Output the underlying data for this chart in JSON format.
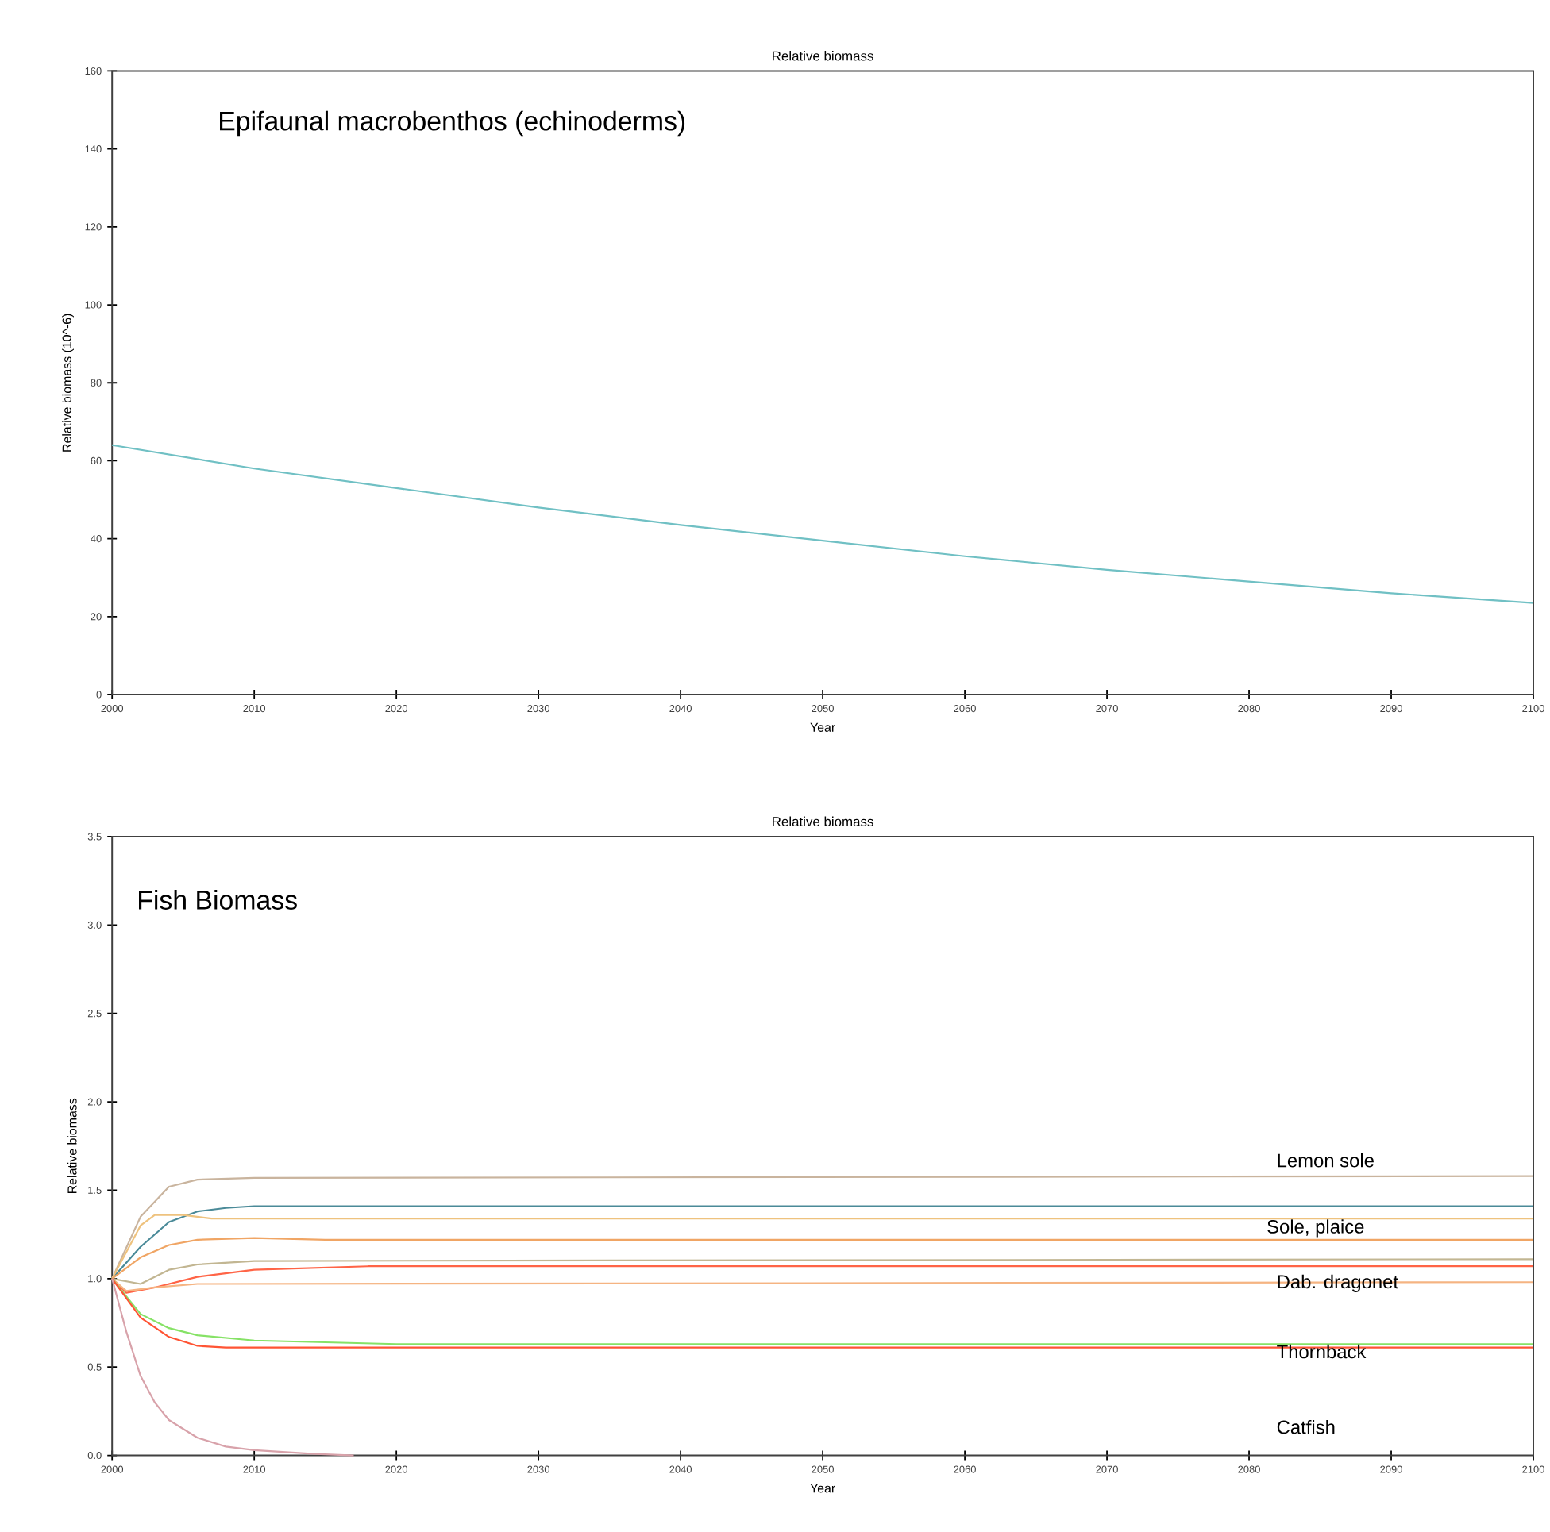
{
  "chart_data": [
    {
      "type": "line",
      "title": "Relative biomass",
      "xlabel": "Year",
      "ylabel": "Relative biomass (10^-6)",
      "annotations": [
        "Epifaunal macrobenthos (echinoderms)"
      ],
      "xlim": [
        2000,
        2100
      ],
      "ylim": [
        0,
        160
      ],
      "xticks": [
        2000,
        2010,
        2020,
        2030,
        2040,
        2050,
        2060,
        2070,
        2080,
        2090,
        2100
      ],
      "yticks": [
        0,
        20,
        40,
        60,
        80,
        100,
        120,
        140,
        160
      ],
      "x": [
        2000,
        2010,
        2020,
        2030,
        2040,
        2050,
        2060,
        2070,
        2080,
        2090,
        2100
      ],
      "series": [
        {
          "color": "#70c0c4",
          "values": [
            64,
            58,
            53,
            48,
            43.5,
            39.5,
            35.5,
            32,
            29,
            26,
            23.5
          ]
        }
      ]
    },
    {
      "type": "line",
      "title": "Relative biomass",
      "xlabel": "Year",
      "ylabel": "Relative biomass",
      "annotations": [
        "Fish Biomass",
        "Lemon sole",
        "Sole, plaice",
        "Dab. dragonet",
        "Thornback",
        "Catfish"
      ],
      "xlim": [
        2000,
        2100
      ],
      "ylim": [
        0,
        3.5
      ],
      "xticks": [
        2000,
        2010,
        2020,
        2030,
        2040,
        2050,
        2060,
        2070,
        2080,
        2090,
        2100
      ],
      "yticks": [
        {
          "value": 0,
          "label": "0.0"
        },
        0.5,
        {
          "value": 1,
          "label": "1.0"
        },
        1.5,
        {
          "value": 2,
          "label": "2.0"
        },
        2.5,
        {
          "value": 3,
          "label": "3.0"
        },
        3.5
      ],
      "series": [
        {
          "color": "#c9b49e",
          "x": [
            2000,
            2002,
            2004,
            2006,
            2010,
            2100
          ],
          "values": [
            1,
            1.35,
            1.52,
            1.56,
            1.57,
            1.58
          ]
        },
        {
          "color": "#4a8a98",
          "x": [
            2000,
            2002,
            2004,
            2006,
            2008,
            2010,
            2100
          ],
          "values": [
            1,
            1.18,
            1.32,
            1.38,
            1.4,
            1.41,
            1.41
          ]
        },
        {
          "color": "#eec27e",
          "x": [
            2000,
            2002,
            2003,
            2005,
            2007,
            2100
          ],
          "values": [
            1,
            1.3,
            1.36,
            1.36,
            1.34,
            1.34
          ]
        },
        {
          "color": "#f0a564",
          "x": [
            2000,
            2002,
            2004,
            2006,
            2010,
            2015,
            2100
          ],
          "values": [
            1,
            1.12,
            1.19,
            1.22,
            1.23,
            1.22,
            1.22
          ]
        },
        {
          "color": "#c2b692",
          "x": [
            2000,
            2002,
            2004,
            2006,
            2010,
            2100
          ],
          "values": [
            1,
            0.97,
            1.05,
            1.08,
            1.1,
            1.11
          ]
        },
        {
          "color": "#ff6446",
          "x": [
            2000,
            2001,
            2003,
            2006,
            2010,
            2018,
            2100
          ],
          "values": [
            1,
            0.92,
            0.95,
            1.01,
            1.05,
            1.07,
            1.07
          ]
        },
        {
          "color": "#f5b482",
          "x": [
            2000,
            2001,
            2003,
            2006,
            2100
          ],
          "values": [
            1,
            0.93,
            0.95,
            0.97,
            0.98
          ]
        },
        {
          "color": "#86e266",
          "x": [
            2000,
            2002,
            2004,
            2006,
            2010,
            2020,
            2100
          ],
          "values": [
            1,
            0.8,
            0.72,
            0.68,
            0.65,
            0.63,
            0.63
          ]
        },
        {
          "color": "#ff5434",
          "x": [
            2000,
            2002,
            2004,
            2006,
            2008,
            2100
          ],
          "values": [
            1,
            0.78,
            0.67,
            0.62,
            0.61,
            0.61
          ]
        },
        {
          "color": "#d8a2aa",
          "x": [
            2000,
            2001,
            2002,
            2003,
            2004,
            2006,
            2008,
            2010,
            2014,
            2017
          ],
          "values": [
            1,
            0.7,
            0.45,
            0.3,
            0.2,
            0.1,
            0.05,
            0.03,
            0.01,
            0
          ]
        }
      ]
    }
  ]
}
